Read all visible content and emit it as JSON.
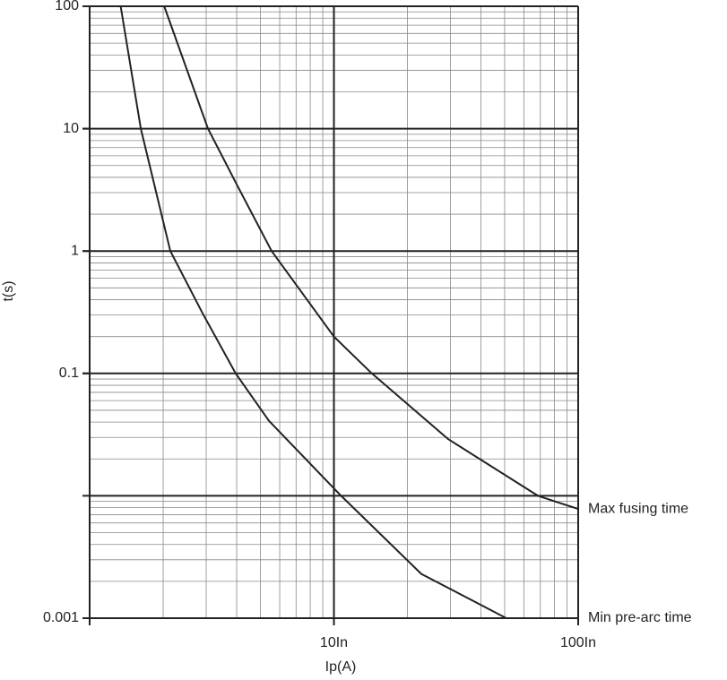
{
  "chart_data": {
    "type": "line",
    "x_label": "Ip(A)",
    "y_label": "t(s)",
    "xlog": true,
    "ylog": true,
    "grid": true,
    "xlim": [
      1,
      100
    ],
    "ylim": [
      0.001,
      100
    ],
    "xticks": [
      {
        "value": 10,
        "label": "10In"
      },
      {
        "value": 100,
        "label": "100In"
      }
    ],
    "yticks": [
      0.001,
      0.1,
      1,
      10,
      100
    ],
    "series": [
      {
        "name": "Max fusing time",
        "color": "#222222",
        "x": [
          2.02,
          3.05,
          4,
          5.56,
          10,
          14.3,
          29.4,
          68.4,
          100
        ],
        "values": [
          100,
          10,
          3.5,
          1,
          0.2,
          0.1,
          0.029,
          0.01,
          0.0078
        ]
      },
      {
        "name": "Min pre-arc time",
        "color": "#222222",
        "x": [
          1.34,
          1.62,
          2.14,
          2.9,
          3.96,
          5.42,
          10.7,
          22.8,
          50.8
        ],
        "values": [
          100,
          10,
          1,
          0.31,
          0.1,
          0.041,
          0.01,
          0.0023,
          0.001
        ]
      }
    ]
  }
}
